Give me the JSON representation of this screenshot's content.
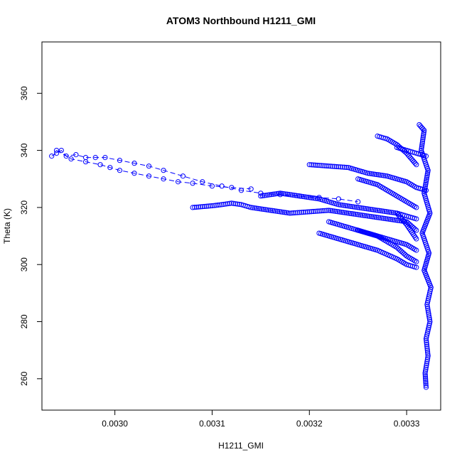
{
  "chart_data": {
    "type": "scatter",
    "title": "ATOM3 Northbound H1211_GMI",
    "xlabel": "H1211_GMI",
    "ylabel": "Theta (K)",
    "xlim": [
      0.002925,
      0.003335
    ],
    "ylim": [
      249,
      378
    ],
    "x_ticks": [
      0.003,
      0.0031,
      0.0032,
      0.0033
    ],
    "x_tick_labels": [
      "0.0030",
      "0.0031",
      "0.0032",
      "0.0033"
    ],
    "y_ticks": [
      260,
      280,
      300,
      320,
      340,
      360
    ],
    "y_tick_labels": [
      "260",
      "280",
      "300",
      "320",
      "340",
      "360"
    ],
    "marker": "open-circle",
    "color": "#0000ff",
    "grid": false,
    "legend": "none",
    "segments": [
      {
        "style": "dashed-line-with-points",
        "points": [
          [
            0.002935,
            338
          ],
          [
            0.00294,
            339
          ],
          [
            0.002945,
            340
          ],
          [
            0.00295,
            338
          ],
          [
            0.00296,
            338.5
          ],
          [
            0.00297,
            337.5
          ],
          [
            0.00298,
            337.5
          ],
          [
            0.00299,
            337.5
          ],
          [
            0.003005,
            336.5
          ],
          [
            0.00302,
            335.5
          ],
          [
            0.003035,
            334.5
          ],
          [
            0.00305,
            333
          ],
          [
            0.00307,
            331
          ],
          [
            0.00309,
            329
          ],
          [
            0.00311,
            327.5
          ],
          [
            0.00313,
            326
          ],
          [
            0.00315,
            325
          ],
          [
            0.00317,
            324.5
          ],
          [
            0.00319,
            324
          ],
          [
            0.00321,
            323.5
          ],
          [
            0.00323,
            323
          ],
          [
            0.00325,
            322
          ]
        ]
      },
      {
        "style": "dashed-line-with-points",
        "points": [
          [
            0.00294,
            340
          ],
          [
            0.002955,
            337
          ],
          [
            0.00297,
            336
          ],
          [
            0.002985,
            335
          ],
          [
            0.002995,
            334
          ],
          [
            0.003005,
            333
          ],
          [
            0.00302,
            332
          ],
          [
            0.003035,
            331
          ],
          [
            0.00305,
            330
          ],
          [
            0.003065,
            329
          ],
          [
            0.00308,
            328.5
          ],
          [
            0.0031,
            327.5
          ],
          [
            0.00312,
            327
          ],
          [
            0.00314,
            326.5
          ]
        ]
      },
      {
        "style": "points",
        "points": [
          [
            0.00308,
            320
          ],
          [
            0.00309,
            320.3
          ],
          [
            0.0031,
            320.6
          ],
          [
            0.00311,
            321
          ],
          [
            0.00312,
            321.5
          ],
          [
            0.00313,
            321
          ],
          [
            0.00314,
            320
          ],
          [
            0.00316,
            319
          ],
          [
            0.00318,
            318
          ],
          [
            0.0032,
            318.5
          ],
          [
            0.00322,
            319
          ],
          [
            0.00324,
            318
          ],
          [
            0.00326,
            317
          ],
          [
            0.00328,
            316
          ],
          [
            0.0033,
            315
          ],
          [
            0.00331,
            312
          ]
        ]
      },
      {
        "style": "points",
        "points": [
          [
            0.00315,
            324
          ],
          [
            0.00317,
            325
          ],
          [
            0.00319,
            324
          ],
          [
            0.00321,
            323
          ],
          [
            0.00323,
            321
          ],
          [
            0.00325,
            320
          ],
          [
            0.00327,
            319
          ],
          [
            0.00329,
            318
          ],
          [
            0.0033,
            317
          ],
          [
            0.00331,
            316
          ]
        ]
      },
      {
        "style": "points",
        "points": [
          [
            0.0032,
            335
          ],
          [
            0.00322,
            334.5
          ],
          [
            0.00324,
            334
          ],
          [
            0.00326,
            332
          ],
          [
            0.00328,
            331
          ],
          [
            0.0033,
            329
          ],
          [
            0.00331,
            327
          ],
          [
            0.00332,
            326
          ]
        ]
      },
      {
        "style": "points",
        "points": [
          [
            0.00325,
            330
          ],
          [
            0.00327,
            328
          ],
          [
            0.00328,
            326
          ],
          [
            0.00329,
            324
          ],
          [
            0.0033,
            322
          ],
          [
            0.00331,
            320
          ]
        ]
      },
      {
        "style": "points",
        "points": [
          [
            0.00321,
            311
          ],
          [
            0.00323,
            309
          ],
          [
            0.00325,
            307
          ],
          [
            0.00327,
            305
          ],
          [
            0.00329,
            302
          ],
          [
            0.0033,
            300
          ],
          [
            0.00331,
            299
          ]
        ]
      },
      {
        "style": "points",
        "points": [
          [
            0.00322,
            315
          ],
          [
            0.00324,
            313
          ],
          [
            0.00326,
            311
          ],
          [
            0.00328,
            309
          ],
          [
            0.0033,
            307
          ],
          [
            0.00331,
            305
          ]
        ]
      },
      {
        "style": "points",
        "points": [
          [
            0.00325,
            312
          ],
          [
            0.00327,
            310
          ],
          [
            0.00329,
            306
          ],
          [
            0.0033,
            303
          ],
          [
            0.00331,
            301
          ]
        ]
      },
      {
        "style": "points",
        "points": [
          [
            0.00327,
            345
          ],
          [
            0.00328,
            344
          ],
          [
            0.00329,
            342
          ],
          [
            0.0033,
            339
          ],
          [
            0.00331,
            335
          ]
        ]
      },
      {
        "style": "points",
        "points": [
          [
            0.00329,
            341
          ],
          [
            0.0033,
            340
          ],
          [
            0.00331,
            339
          ],
          [
            0.00332,
            338
          ]
        ]
      },
      {
        "style": "points",
        "points": [
          [
            0.00329,
            318
          ],
          [
            0.0033,
            314
          ],
          [
            0.00331,
            309
          ]
        ]
      },
      {
        "style": "points",
        "points": [
          [
            0.003313,
            349
          ],
          [
            0.003318,
            347
          ],
          [
            0.003315,
            340
          ],
          [
            0.003322,
            333
          ],
          [
            0.003318,
            325
          ],
          [
            0.003324,
            318
          ],
          [
            0.003316,
            311
          ],
          [
            0.003323,
            304
          ],
          [
            0.003318,
            298
          ],
          [
            0.003325,
            292
          ],
          [
            0.003321,
            286
          ],
          [
            0.003324,
            280
          ],
          [
            0.00332,
            274
          ],
          [
            0.003322,
            268
          ],
          [
            0.003319,
            262
          ],
          [
            0.00332,
            257
          ]
        ]
      }
    ]
  }
}
